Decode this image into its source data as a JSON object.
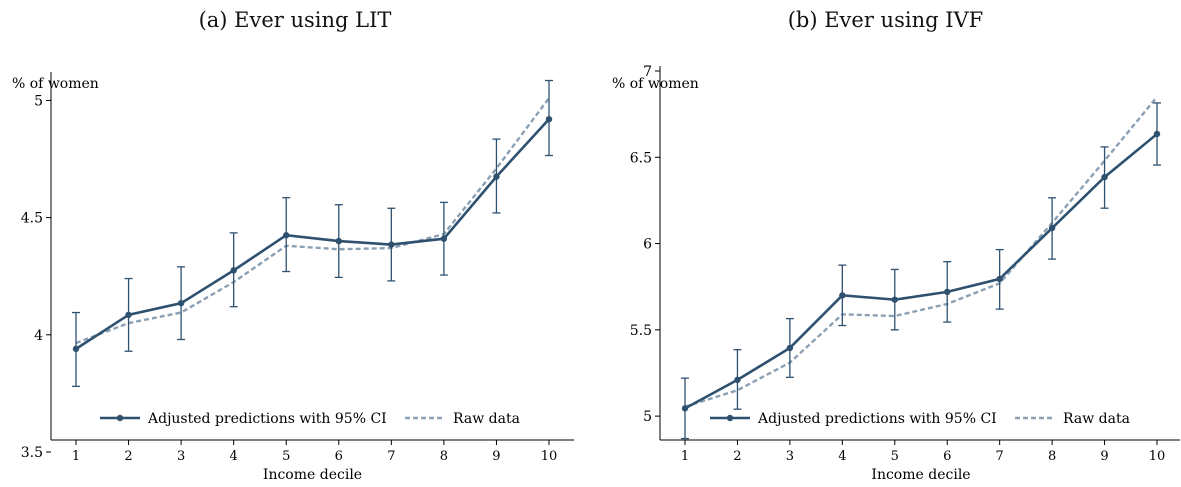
{
  "chart_data": [
    {
      "type": "line",
      "title": "(a) Ever using LIT",
      "ylabel": "% of women",
      "xlabel": "Income decile",
      "x": [
        1,
        2,
        3,
        4,
        5,
        6,
        7,
        8,
        9,
        10
      ],
      "ylim": [
        3.5,
        5.1
      ],
      "yticks": [
        "3.5",
        "4",
        "4.5",
        "5"
      ],
      "grid": false,
      "legend_position": "bottom",
      "series": [
        {
          "name": "Adjusted predictions with 95% CI",
          "color": "#2f5170",
          "style": "solid-with-markers",
          "values": [
            3.94,
            4.085,
            4.135,
            4.275,
            4.425,
            4.4,
            4.385,
            4.41,
            4.675,
            4.92
          ],
          "ci_low": [
            3.78,
            3.93,
            3.98,
            4.12,
            4.27,
            4.245,
            4.23,
            4.255,
            4.52,
            4.765
          ],
          "ci_high": [
            4.095,
            4.24,
            4.29,
            4.435,
            4.585,
            4.555,
            4.54,
            4.565,
            4.835,
            5.085
          ]
        },
        {
          "name": "Raw data",
          "color": "#8ca0b4",
          "style": "dashed",
          "values": [
            3.965,
            4.05,
            4.095,
            4.225,
            4.38,
            4.365,
            4.37,
            4.43,
            4.71,
            5.01
          ]
        }
      ]
    },
    {
      "type": "line",
      "title": "(b) Ever using IVF",
      "ylabel": "% of women",
      "xlabel": "Income decile",
      "x": [
        1,
        2,
        3,
        4,
        5,
        6,
        7,
        8,
        9,
        10
      ],
      "ylim": [
        4.85,
        7.0
      ],
      "yticks": [
        "5",
        "5.5",
        "6",
        "6.5",
        "7"
      ],
      "grid": false,
      "legend_position": "bottom",
      "series": [
        {
          "name": "Adjusted predictions with 95% CI",
          "color": "#2f5170",
          "style": "solid-with-markers",
          "values": [
            5.045,
            5.21,
            5.395,
            5.7,
            5.675,
            5.72,
            5.795,
            6.09,
            6.385,
            6.635
          ],
          "ci_low": [
            4.87,
            5.04,
            5.225,
            5.525,
            5.5,
            5.545,
            5.62,
            5.91,
            6.205,
            6.455
          ],
          "ci_high": [
            5.22,
            5.385,
            5.565,
            5.875,
            5.85,
            5.895,
            5.965,
            6.265,
            6.56,
            6.815
          ]
        },
        {
          "name": "Raw data",
          "color": "#8ca0b4",
          "style": "dashed",
          "values": [
            5.055,
            5.15,
            5.31,
            5.59,
            5.58,
            5.65,
            5.77,
            6.12,
            6.48,
            6.85
          ]
        }
      ]
    }
  ]
}
